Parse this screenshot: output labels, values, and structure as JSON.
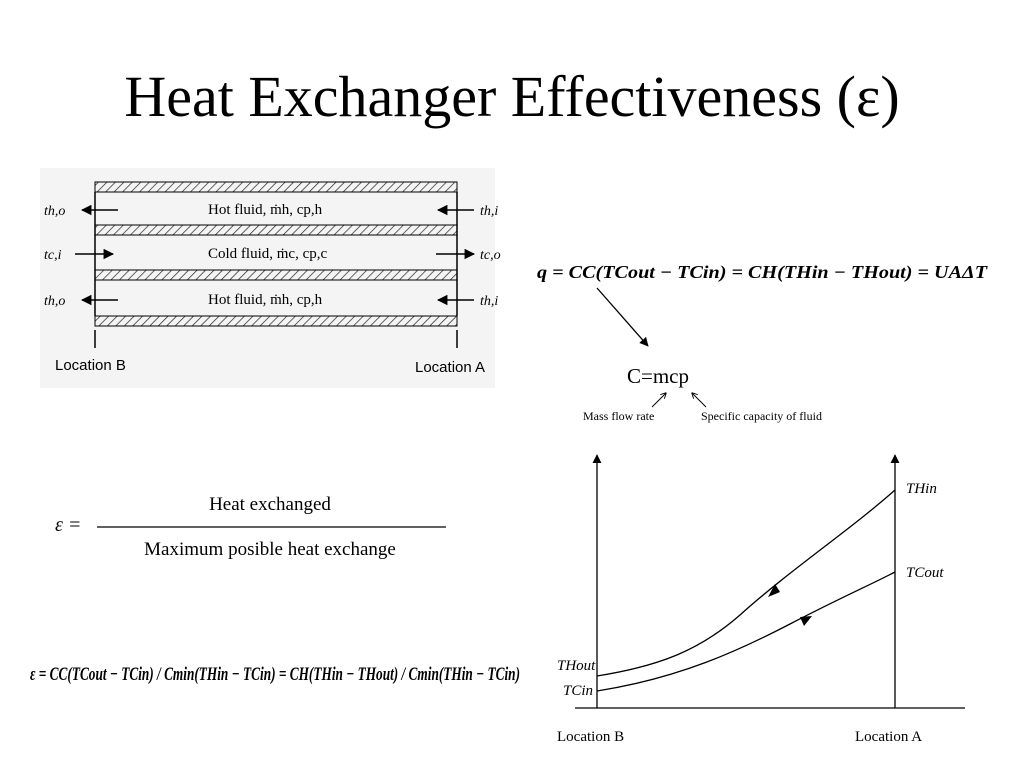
{
  "slide": {
    "title": "Heat Exchanger Effectiveness (ε)"
  },
  "exchanger_diagram": {
    "hot_fluid_top": "Hot fluid, ṁh, cp,h",
    "cold_fluid": "Cold fluid, ṁc, cp,c",
    "hot_fluid_bottom": "Hot fluid, ṁh, cp,h",
    "left_labels": [
      "th,o",
      "tc,i",
      "th,o"
    ],
    "right_labels": [
      "th,i",
      "tc,o",
      "th,i"
    ],
    "location_b": "Location B",
    "location_a": "Location A"
  },
  "heat_rate_equation": "q = CC(TCout − TCin) = CH(THin − THout) = UAΔT",
  "capacity_definition": {
    "equation": "C=mcp",
    "mass_flow_label": "Mass flow rate",
    "specific_capacity_label": "Specific capacity of fluid"
  },
  "effectiveness_definition": {
    "symbol": "ε =",
    "numerator": "Heat  exchanged",
    "denominator": "Maximum posible heat  exchange"
  },
  "effectiveness_equation": "ε = CC(TCout − TCin) / Cmin(THin − TCin) = CH(THin − THout) / Cmin(THin − TCin)",
  "temperature_plot": {
    "curve_labels": [
      "THin",
      "TCout",
      "THout",
      "TCin"
    ],
    "x_labels": [
      "Location B",
      "Location A"
    ]
  }
}
